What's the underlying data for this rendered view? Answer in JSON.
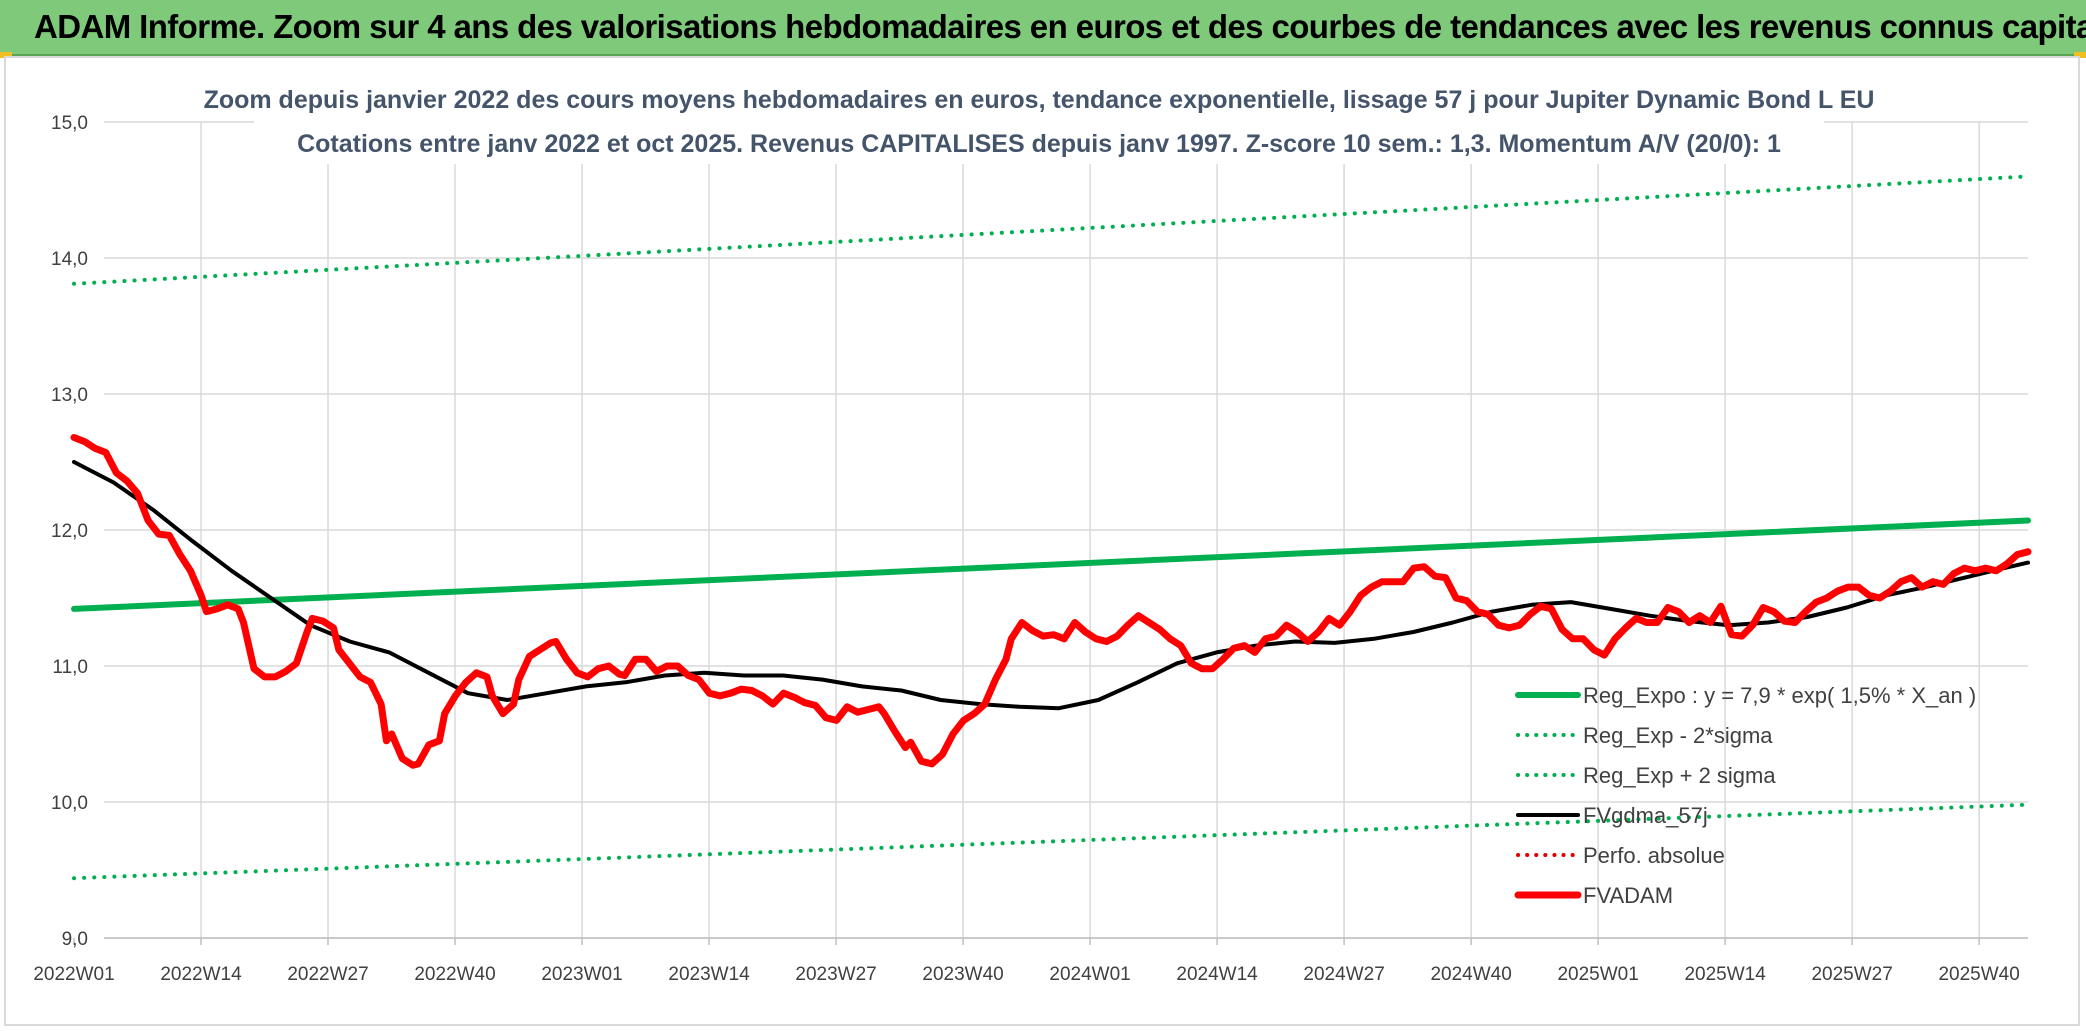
{
  "banner": {
    "title": "ADAM Informe. Zoom sur 4 ans des valorisations hebdomadaires en euros et des courbes de tendances avec les revenus connus capitalisés"
  },
  "chart_data": {
    "type": "line",
    "title_lines": [
      "Zoom depuis janvier 2022 des cours moyens hebdomadaires en euros, tendance exponentielle, lissage 57 j pour Jupiter Dynamic Bond L EU",
      "Cotations entre janv 2022 et oct 2025. Revenus CAPITALISES depuis janv 1997. Z-score 10 sem.: 1,3. Momentum A/V (20/0): 1"
    ],
    "ylim": [
      9.0,
      15.0
    ],
    "y_ticks": [
      "9,0",
      "10,0",
      "11,0",
      "12,0",
      "13,0",
      "14,0",
      "15,0"
    ],
    "x_ticks": [
      "2022W01",
      "2022W14",
      "2022W27",
      "2022W40",
      "2023W01",
      "2023W14",
      "2023W27",
      "2023W40",
      "2024W01",
      "2024W14",
      "2024W27",
      "2024W40",
      "2025W01",
      "2025W14",
      "2025W27",
      "2025W40"
    ],
    "n_weeks": 201,
    "grid": true,
    "legend_position": "bottom-right",
    "series": [
      {
        "name": "Reg_Expo : y = 7,9 * exp( 1,5% *  X_an )",
        "style": "solid",
        "color": "#00b050",
        "width": 6,
        "values": [
          [
            0,
            11.42
          ],
          [
            200,
            12.07
          ]
        ]
      },
      {
        "name": "Reg_Exp - 2*sigma",
        "style": "dotted",
        "color": "#00b050",
        "width": 4,
        "values": [
          [
            0,
            9.44
          ],
          [
            200,
            9.98
          ]
        ]
      },
      {
        "name": "Reg_Exp + 2 sigma",
        "style": "dotted",
        "color": "#00b050",
        "width": 4,
        "values": [
          [
            0,
            13.81
          ],
          [
            200,
            14.6
          ]
        ]
      },
      {
        "name": "FVgdma_57j",
        "style": "solid",
        "color": "#000000",
        "width": 4,
        "values": [
          [
            0,
            12.5
          ],
          [
            5,
            12.35
          ],
          [
            10,
            12.15
          ],
          [
            15,
            11.92
          ],
          [
            20,
            11.7
          ],
          [
            25,
            11.5
          ],
          [
            30,
            11.3
          ],
          [
            35,
            11.18
          ],
          [
            40,
            11.1
          ],
          [
            45,
            10.95
          ],
          [
            50,
            10.8
          ],
          [
            55,
            10.75
          ],
          [
            60,
            10.8
          ],
          [
            65,
            10.85
          ],
          [
            70,
            10.88
          ],
          [
            75,
            10.93
          ],
          [
            80,
            10.95
          ],
          [
            85,
            10.93
          ],
          [
            90,
            10.93
          ],
          [
            95,
            10.9
          ],
          [
            100,
            10.85
          ],
          [
            105,
            10.82
          ],
          [
            110,
            10.75
          ],
          [
            115,
            10.72
          ],
          [
            120,
            10.7
          ],
          [
            125,
            10.69
          ],
          [
            130,
            10.75
          ],
          [
            135,
            10.88
          ],
          [
            140,
            11.02
          ],
          [
            145,
            11.1
          ],
          [
            150,
            11.15
          ],
          [
            155,
            11.18
          ],
          [
            160,
            11.17
          ],
          [
            165,
            11.2
          ],
          [
            170,
            11.25
          ],
          [
            175,
            11.32
          ],
          [
            180,
            11.4
          ],
          [
            185,
            11.45
          ],
          [
            190,
            11.47
          ],
          [
            195,
            11.42
          ],
          [
            200,
            11.37
          ],
          [
            205,
            11.33
          ],
          [
            210,
            11.3
          ],
          [
            215,
            11.32
          ],
          [
            220,
            11.36
          ],
          [
            225,
            11.43
          ],
          [
            230,
            11.52
          ],
          [
            235,
            11.58
          ],
          [
            240,
            11.65
          ],
          [
            245,
            11.72
          ],
          [
            248,
            11.76
          ]
        ]
      },
      {
        "name": "Perfo. absolue",
        "style": "dotted",
        "color": "#e00000",
        "width": 4,
        "values": []
      },
      {
        "name": "FVADAM",
        "style": "solid",
        "color": "#ff0000",
        "width": 7,
        "values": [
          [
            0,
            12.68
          ],
          [
            2,
            12.65
          ],
          [
            4,
            12.6
          ],
          [
            6,
            12.57
          ],
          [
            8,
            12.42
          ],
          [
            10,
            12.36
          ],
          [
            12,
            12.27
          ],
          [
            14,
            12.07
          ],
          [
            16,
            11.97
          ],
          [
            18,
            11.96
          ],
          [
            20,
            11.82
          ],
          [
            22,
            11.7
          ],
          [
            24,
            11.52
          ],
          [
            25,
            11.4
          ],
          [
            27,
            11.42
          ],
          [
            29,
            11.45
          ],
          [
            31,
            11.42
          ],
          [
            32,
            11.32
          ],
          [
            34,
            10.98
          ],
          [
            36,
            10.92
          ],
          [
            38,
            10.92
          ],
          [
            40,
            10.96
          ],
          [
            42,
            11.02
          ],
          [
            44,
            11.25
          ],
          [
            45,
            11.35
          ],
          [
            47,
            11.33
          ],
          [
            49,
            11.28
          ],
          [
            50,
            11.12
          ],
          [
            52,
            11.02
          ],
          [
            54,
            10.92
          ],
          [
            56,
            10.88
          ],
          [
            58,
            10.72
          ],
          [
            59,
            10.45
          ],
          [
            60,
            10.5
          ],
          [
            62,
            10.32
          ],
          [
            64,
            10.27
          ],
          [
            65,
            10.28
          ],
          [
            67,
            10.42
          ],
          [
            69,
            10.45
          ],
          [
            70,
            10.65
          ],
          [
            72,
            10.78
          ],
          [
            74,
            10.88
          ],
          [
            76,
            10.95
          ],
          [
            78,
            10.92
          ],
          [
            79,
            10.78
          ],
          [
            81,
            10.65
          ],
          [
            83,
            10.72
          ],
          [
            84,
            10.9
          ],
          [
            86,
            11.07
          ],
          [
            88,
            11.12
          ],
          [
            90,
            11.17
          ],
          [
            91,
            11.18
          ],
          [
            93,
            11.05
          ],
          [
            95,
            10.95
          ],
          [
            97,
            10.92
          ],
          [
            99,
            10.98
          ],
          [
            101,
            11.0
          ],
          [
            103,
            10.94
          ],
          [
            104,
            10.93
          ],
          [
            106,
            11.05
          ],
          [
            108,
            11.05
          ],
          [
            110,
            10.96
          ],
          [
            112,
            11.0
          ],
          [
            114,
            11.0
          ],
          [
            116,
            10.93
          ],
          [
            118,
            10.9
          ],
          [
            120,
            10.8
          ],
          [
            122,
            10.78
          ],
          [
            124,
            10.8
          ],
          [
            126,
            10.83
          ],
          [
            128,
            10.82
          ],
          [
            130,
            10.78
          ],
          [
            132,
            10.72
          ],
          [
            134,
            10.8
          ],
          [
            136,
            10.77
          ],
          [
            138,
            10.73
          ],
          [
            140,
            10.71
          ],
          [
            142,
            10.62
          ],
          [
            144,
            10.6
          ],
          [
            146,
            10.7
          ],
          [
            148,
            10.66
          ],
          [
            150,
            10.68
          ],
          [
            152,
            10.7
          ],
          [
            153,
            10.65
          ],
          [
            155,
            10.52
          ],
          [
            157,
            10.4
          ],
          [
            158,
            10.44
          ],
          [
            160,
            10.3
          ],
          [
            162,
            10.28
          ],
          [
            164,
            10.35
          ],
          [
            166,
            10.5
          ],
          [
            168,
            10.6
          ],
          [
            170,
            10.65
          ],
          [
            172,
            10.72
          ],
          [
            174,
            10.9
          ],
          [
            176,
            11.05
          ],
          [
            177,
            11.2
          ],
          [
            179,
            11.32
          ],
          [
            181,
            11.26
          ],
          [
            183,
            11.22
          ],
          [
            185,
            11.23
          ],
          [
            187,
            11.2
          ],
          [
            189,
            11.32
          ],
          [
            191,
            11.25
          ],
          [
            193,
            11.2
          ],
          [
            195,
            11.18
          ],
          [
            197,
            11.22
          ],
          [
            199,
            11.3
          ],
          [
            201,
            11.37
          ],
          [
            203,
            11.32
          ],
          [
            205,
            11.27
          ],
          [
            207,
            11.2
          ],
          [
            209,
            11.15
          ],
          [
            211,
            11.02
          ],
          [
            213,
            10.98
          ],
          [
            215,
            10.98
          ],
          [
            217,
            11.05
          ],
          [
            219,
            11.13
          ],
          [
            221,
            11.15
          ],
          [
            223,
            11.1
          ],
          [
            225,
            11.2
          ],
          [
            227,
            11.22
          ],
          [
            229,
            11.3
          ],
          [
            231,
            11.25
          ],
          [
            233,
            11.18
          ],
          [
            235,
            11.25
          ],
          [
            237,
            11.35
          ],
          [
            239,
            11.3
          ],
          [
            241,
            11.4
          ],
          [
            243,
            11.52
          ],
          [
            245,
            11.58
          ],
          [
            247,
            11.62
          ],
          [
            249,
            11.62
          ],
          [
            251,
            11.62
          ],
          [
            253,
            11.72
          ],
          [
            255,
            11.73
          ],
          [
            257,
            11.66
          ],
          [
            259,
            11.65
          ],
          [
            261,
            11.5
          ],
          [
            263,
            11.48
          ],
          [
            265,
            11.4
          ],
          [
            267,
            11.38
          ],
          [
            269,
            11.3
          ],
          [
            271,
            11.28
          ],
          [
            273,
            11.3
          ],
          [
            275,
            11.38
          ],
          [
            277,
            11.44
          ],
          [
            279,
            11.42
          ],
          [
            281,
            11.27
          ],
          [
            283,
            11.2
          ],
          [
            285,
            11.2
          ],
          [
            287,
            11.12
          ],
          [
            289,
            11.08
          ],
          [
            291,
            11.2
          ],
          [
            293,
            11.28
          ],
          [
            295,
            11.35
          ],
          [
            297,
            11.32
          ],
          [
            299,
            11.32
          ],
          [
            301,
            11.43
          ],
          [
            303,
            11.4
          ],
          [
            305,
            11.32
          ],
          [
            307,
            11.37
          ],
          [
            309,
            11.32
          ],
          [
            311,
            11.44
          ],
          [
            313,
            11.23
          ],
          [
            315,
            11.22
          ],
          [
            317,
            11.3
          ],
          [
            319,
            11.43
          ],
          [
            321,
            11.4
          ],
          [
            323,
            11.33
          ],
          [
            325,
            11.32
          ],
          [
            327,
            11.4
          ],
          [
            329,
            11.47
          ],
          [
            331,
            11.5
          ],
          [
            333,
            11.55
          ],
          [
            335,
            11.58
          ],
          [
            337,
            11.58
          ],
          [
            339,
            11.52
          ],
          [
            341,
            11.5
          ],
          [
            343,
            11.55
          ],
          [
            345,
            11.62
          ],
          [
            347,
            11.65
          ],
          [
            349,
            11.58
          ],
          [
            351,
            11.62
          ],
          [
            353,
            11.6
          ],
          [
            355,
            11.68
          ],
          [
            357,
            11.72
          ],
          [
            359,
            11.7
          ],
          [
            361,
            11.72
          ],
          [
            363,
            11.7
          ],
          [
            365,
            11.75
          ],
          [
            367,
            11.82
          ],
          [
            369,
            11.84
          ]
        ]
      }
    ]
  }
}
